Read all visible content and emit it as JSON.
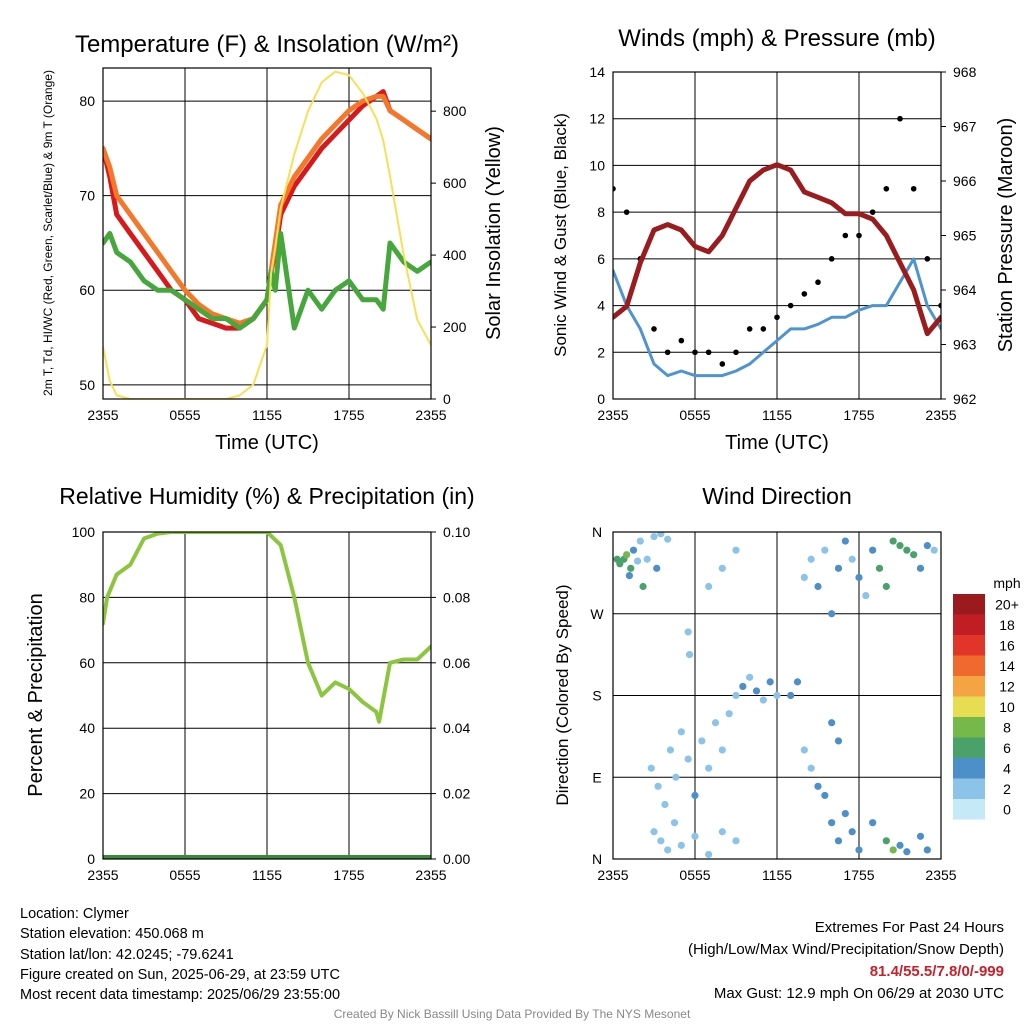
{
  "chart_data": [
    {
      "id": "temperature",
      "type": "line",
      "title": "Temperature (F) & Insolation (W/m²)",
      "xlabel": "Time (UTC)",
      "ylabel": "2m T, Td, HI/WC (Red, Green, Scarlet/Blue) & 9m T (Orange)",
      "y2label": "Solar Insolation (Yellow)",
      "x_ticks": [
        "2355",
        "0555",
        "1155",
        "1755",
        "2355"
      ],
      "ylim": [
        48.5,
        83.5
      ],
      "y_ticks": [
        50,
        60,
        70,
        80
      ],
      "y2lim": [
        0,
        920
      ],
      "y2_ticks": [
        0,
        200,
        400,
        600,
        800
      ],
      "x_hours": [
        0,
        0.5,
        1,
        2,
        3,
        4,
        5,
        6,
        7,
        8,
        9,
        10,
        11,
        12,
        12.3,
        12.6,
        13,
        14,
        15,
        16,
        17,
        18,
        19,
        20,
        20.5,
        21,
        22,
        23,
        24
      ],
      "series": [
        {
          "name": "2m T",
          "axis": "y",
          "color": "#d7191c",
          "values": [
            75,
            72,
            68,
            66,
            64,
            62,
            60,
            59,
            57,
            56.5,
            56,
            56,
            57,
            59,
            62,
            64,
            68,
            71,
            73,
            75,
            76.5,
            78,
            79.5,
            80.5,
            81,
            79,
            78,
            77,
            76
          ]
        },
        {
          "name": "9m T",
          "axis": "y",
          "color": "#f4772a",
          "values": [
            75,
            73,
            70,
            68,
            66,
            64,
            62,
            60,
            58.5,
            57.5,
            57,
            56.5,
            57,
            59,
            62,
            65,
            69,
            72,
            74,
            76,
            77.5,
            79,
            80,
            80.5,
            80.5,
            79,
            78,
            77,
            76
          ]
        },
        {
          "name": "Td",
          "axis": "y",
          "color": "#46a83c",
          "values": [
            65,
            66,
            64,
            63,
            61,
            60,
            60,
            59,
            58,
            57,
            57,
            56,
            57,
            59,
            62,
            60,
            66,
            56,
            60,
            58,
            60,
            61,
            59,
            59,
            58,
            65,
            63,
            62,
            63
          ]
        },
        {
          "name": "Solar Insolation",
          "axis": "y2",
          "color": "#f7e056",
          "values": [
            145,
            50,
            10,
            0,
            0,
            0,
            0,
            0,
            0,
            0,
            0,
            10,
            40,
            150,
            350,
            420,
            530,
            680,
            800,
            880,
            910,
            900,
            850,
            780,
            720,
            620,
            400,
            220,
            150
          ]
        }
      ]
    },
    {
      "id": "winds",
      "type": "line",
      "title": "Winds (mph) & Pressure (mb)",
      "xlabel": "Time (UTC)",
      "ylabel": "Sonic Wind & Gust (Blue, Black)",
      "y2label": "Station Pressure (Maroon)",
      "x_ticks": [
        "2355",
        "0555",
        "1155",
        "1755",
        "2355"
      ],
      "ylim": [
        0,
        14
      ],
      "y_ticks": [
        0,
        2,
        4,
        6,
        8,
        10,
        12,
        14
      ],
      "y2lim": [
        962,
        968
      ],
      "y2_ticks": [
        962,
        963,
        964,
        965,
        966,
        967,
        968
      ],
      "x_hours": [
        0,
        1,
        2,
        3,
        4,
        5,
        6,
        7,
        8,
        9,
        10,
        11,
        12,
        13,
        14,
        15,
        16,
        17,
        18,
        19,
        20,
        21,
        22,
        23,
        24
      ],
      "series": [
        {
          "name": "Sonic Wind",
          "axis": "y",
          "color": "#4d94d0",
          "values": [
            5.5,
            4,
            3,
            1.5,
            1,
            1.2,
            1,
            1,
            1,
            1.2,
            1.5,
            2,
            2.5,
            3,
            3,
            3.2,
            3.5,
            3.5,
            3.8,
            4,
            4,
            5,
            6,
            4,
            3
          ]
        },
        {
          "name": "Gust",
          "axis": "y",
          "color": "#000000",
          "values": [
            9,
            8,
            6,
            3,
            2,
            2.5,
            2,
            2,
            1.5,
            2,
            3,
            3,
            3.5,
            4,
            4.5,
            5,
            6,
            7,
            7,
            8,
            9,
            12,
            9,
            6,
            4
          ]
        },
        {
          "name": "Station Pressure",
          "axis": "y2",
          "color": "#9b1c1f",
          "values": [
            963.5,
            963.7,
            964.5,
            965.1,
            965.2,
            965.1,
            964.8,
            964.7,
            965,
            965.5,
            966,
            966.2,
            966.3,
            966.2,
            965.8,
            965.7,
            965.6,
            965.4,
            965.4,
            965.3,
            965,
            964.5,
            964,
            963.2,
            963.5
          ]
        }
      ]
    },
    {
      "id": "humidity",
      "type": "line",
      "title": "Relative Humidity (%) & Precipitation (in)",
      "ylabel": "Percent & Precipitation",
      "x_ticks": [
        "2355",
        "0555",
        "1155",
        "1755",
        "2355"
      ],
      "ylim": [
        0,
        100
      ],
      "y_ticks": [
        0,
        20,
        40,
        60,
        80,
        100
      ],
      "y2lim": [
        0,
        0.1
      ],
      "y2_ticks": [
        "0.00",
        "0.02",
        "0.04",
        "0.06",
        "0.08",
        "0.10"
      ],
      "x_hours": [
        0,
        0.3,
        1,
        2,
        3,
        4,
        5,
        6,
        7,
        8,
        9,
        10,
        11,
        12,
        13,
        14,
        15,
        16,
        17,
        18,
        19,
        20,
        20.2,
        21,
        22,
        23,
        24
      ],
      "series": [
        {
          "name": "Relative Humidity",
          "axis": "y",
          "color": "#8cc63f",
          "values": [
            72,
            80,
            87,
            90,
            98,
            99.5,
            100,
            100,
            100,
            100,
            100,
            100,
            100,
            100,
            96,
            80,
            60,
            50,
            54,
            52,
            48,
            45,
            42,
            60,
            61,
            61,
            65
          ]
        },
        {
          "name": "Precipitation",
          "axis": "y2",
          "color": "#3a8a3a",
          "values": [
            0,
            0,
            0,
            0,
            0,
            0,
            0,
            0,
            0,
            0,
            0,
            0,
            0,
            0,
            0,
            0,
            0,
            0,
            0,
            0,
            0,
            0,
            0,
            0,
            0,
            0,
            0
          ]
        }
      ]
    },
    {
      "id": "direction",
      "type": "scatter",
      "title": "Wind Direction",
      "ylabel": "Direction (Colored By Speed)",
      "x_ticks": [
        "2355",
        "0555",
        "1155",
        "1755",
        "2355"
      ],
      "y_ticks": [
        "N",
        "E",
        "S",
        "W",
        "N"
      ],
      "ylim": [
        0,
        360
      ],
      "colorbar_title": "mph",
      "colorbar_labels": [
        "0",
        "2",
        "4",
        "6",
        "8",
        "10",
        "12",
        "14",
        "16",
        "18",
        "20+"
      ],
      "colorbar_colors": [
        "#c6e9f7",
        "#8bc4e8",
        "#4d8fc8",
        "#4aa26a",
        "#74b94a",
        "#e7dd52",
        "#f5a443",
        "#ef6a2c",
        "#e2352a",
        "#c01e24",
        "#9a1a1e"
      ],
      "points": [
        [
          0.3,
          330,
          5
        ],
        [
          0.5,
          325,
          6
        ],
        [
          0.8,
          330,
          5
        ],
        [
          1.0,
          335,
          7
        ],
        [
          1.3,
          320,
          6
        ],
        [
          1.5,
          340,
          3
        ],
        [
          1.8,
          328,
          2
        ],
        [
          2.0,
          350,
          2
        ],
        [
          2.5,
          330,
          1
        ],
        [
          3.0,
          355,
          1
        ],
        [
          3.5,
          358,
          1
        ],
        [
          4.0,
          352,
          2
        ],
        [
          3.2,
          320,
          4
        ],
        [
          1.2,
          312,
          4
        ],
        [
          2.2,
          300,
          5
        ],
        [
          2.8,
          100,
          1
        ],
        [
          3.3,
          80,
          2
        ],
        [
          3.8,
          60,
          1
        ],
        [
          4.2,
          120,
          2
        ],
        [
          4.6,
          90,
          2
        ],
        [
          5.0,
          140,
          1
        ],
        [
          5.5,
          110,
          2
        ],
        [
          6.0,
          70,
          3
        ],
        [
          6.5,
          130,
          1
        ],
        [
          7.0,
          100,
          2
        ],
        [
          7.5,
          150,
          2
        ],
        [
          8.0,
          120,
          1
        ],
        [
          8.5,
          160,
          2
        ],
        [
          9.0,
          180,
          2
        ],
        [
          9.5,
          190,
          3
        ],
        [
          10.0,
          200,
          2
        ],
        [
          10.5,
          185,
          3
        ],
        [
          11.0,
          175,
          2
        ],
        [
          11.5,
          195,
          3
        ],
        [
          12.0,
          180,
          2
        ],
        [
          3.0,
          30,
          1
        ],
        [
          3.5,
          20,
          2
        ],
        [
          4.0,
          10,
          1
        ],
        [
          4.5,
          40,
          2
        ],
        [
          5.0,
          15,
          1
        ],
        [
          6.0,
          25,
          1
        ],
        [
          7.0,
          5,
          1
        ],
        [
          8.0,
          30,
          2
        ],
        [
          9.0,
          20,
          1
        ],
        [
          5.5,
          250,
          2
        ],
        [
          5.6,
          225,
          1
        ],
        [
          7.0,
          300,
          1
        ],
        [
          8.0,
          320,
          2
        ],
        [
          9.0,
          340,
          1
        ],
        [
          13.0,
          180,
          3
        ],
        [
          13.5,
          195,
          3
        ],
        [
          14.0,
          310,
          2
        ],
        [
          14.5,
          330,
          2
        ],
        [
          15.0,
          300,
          3
        ],
        [
          15.5,
          340,
          2
        ],
        [
          16.0,
          270,
          4
        ],
        [
          16.5,
          320,
          3
        ],
        [
          17.0,
          350,
          4
        ],
        [
          17.5,
          330,
          2
        ],
        [
          18.0,
          310,
          3
        ],
        [
          18.5,
          290,
          2
        ],
        [
          19.0,
          340,
          4
        ],
        [
          19.5,
          320,
          5
        ],
        [
          20.0,
          300,
          6
        ],
        [
          20.5,
          350,
          6
        ],
        [
          21.0,
          345,
          5
        ],
        [
          21.5,
          340,
          6
        ],
        [
          22.0,
          335,
          5
        ],
        [
          22.5,
          320,
          4
        ],
        [
          23.0,
          345,
          3
        ],
        [
          23.5,
          340,
          2
        ],
        [
          15.5,
          70,
          4
        ],
        [
          16.0,
          40,
          4
        ],
        [
          16.5,
          20,
          3
        ],
        [
          17.0,
          50,
          4
        ],
        [
          17.5,
          30,
          4
        ],
        [
          18.0,
          10,
          3
        ],
        [
          19.0,
          40,
          3
        ],
        [
          20.0,
          20,
          6
        ],
        [
          20.5,
          10,
          7
        ],
        [
          21.0,
          15,
          4
        ],
        [
          21.5,
          8,
          4
        ],
        [
          22.5,
          25,
          4
        ],
        [
          23.0,
          10,
          3
        ],
        [
          14.0,
          120,
          2
        ],
        [
          14.5,
          100,
          2
        ],
        [
          15.0,
          80,
          3
        ],
        [
          16.0,
          150,
          3
        ],
        [
          16.5,
          130,
          4
        ]
      ]
    }
  ],
  "footer": {
    "location": "Location: Clymer",
    "elevation": "Station elevation: 450.068 m",
    "latlon": "Station lat/lon: 42.0245; -79.6241",
    "created": "Figure created on Sun, 2025-06-29, at 23:59 UTC",
    "recent": "Most recent data timestamp: 2025/06/29 23:55:00",
    "extremes_title": "Extremes For Past 24 Hours",
    "extremes_sub": "(High/Low/Max Wind/Precipitation/Snow Depth)",
    "extremes_values": "81.4/55.5/7.8/0/-999",
    "max_gust": "Max Gust: 12.9 mph On 06/29 at 2030 UTC",
    "credit": "Created By Nick Bassill Using Data Provided By The NYS Mesonet"
  }
}
